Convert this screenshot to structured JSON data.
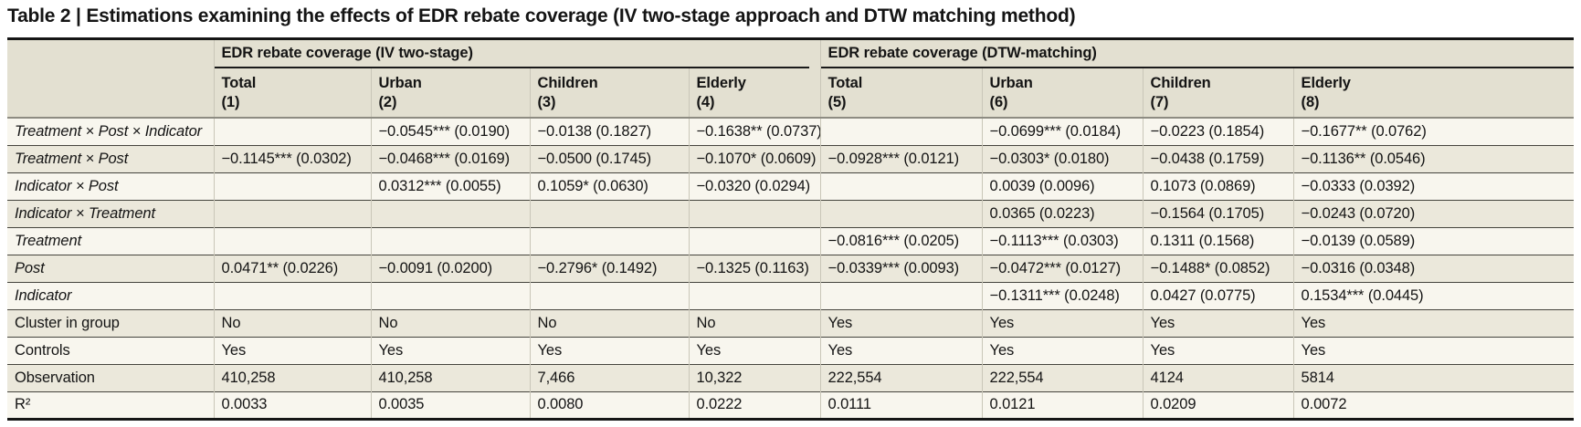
{
  "title": "Table 2 | Estimations examining the effects of EDR rebate coverage (IV two-stage approach and DTW matching method)",
  "table": {
    "groups": [
      {
        "label": "EDR rebate coverage (IV two-stage)"
      },
      {
        "label": "EDR rebate coverage (DTW-matching)"
      }
    ],
    "columns": [
      {
        "name": "Total",
        "number": "(1)"
      },
      {
        "name": "Urban",
        "number": "(2)"
      },
      {
        "name": "Children",
        "number": "(3)"
      },
      {
        "name": "Elderly",
        "number": "(4)"
      },
      {
        "name": "Total",
        "number": "(5)"
      },
      {
        "name": "Urban",
        "number": "(6)"
      },
      {
        "name": "Children",
        "number": "(7)"
      },
      {
        "name": "Elderly",
        "number": "(8)"
      }
    ],
    "rows": [
      {
        "label": "Treatment × Post × Indicator",
        "italic": true,
        "values": [
          "",
          "−0.0545*** (0.0190)",
          "−0.0138 (0.1827)",
          "−0.1638** (0.0737)",
          "",
          "−0.0699*** (0.0184)",
          "−0.0223 (0.1854)",
          "−0.1677** (0.0762)"
        ]
      },
      {
        "label": "Treatment × Post",
        "italic": true,
        "values": [
          "−0.1145*** (0.0302)",
          "−0.0468*** (0.0169)",
          "−0.0500 (0.1745)",
          "−0.1070* (0.0609)",
          "−0.0928*** (0.0121)",
          "−0.0303* (0.0180)",
          "−0.0438 (0.1759)",
          "−0.1136** (0.0546)"
        ]
      },
      {
        "label": "Indicator × Post",
        "italic": true,
        "values": [
          "",
          "0.0312*** (0.0055)",
          "0.1059* (0.0630)",
          "−0.0320 (0.0294)",
          "",
          "0.0039 (0.0096)",
          "0.1073 (0.0869)",
          "−0.0333 (0.0392)"
        ]
      },
      {
        "label": "Indicator × Treatment",
        "italic": true,
        "values": [
          "",
          "",
          "",
          "",
          "",
          "0.0365 (0.0223)",
          "−0.1564 (0.1705)",
          "−0.0243 (0.0720)"
        ]
      },
      {
        "label": "Treatment",
        "italic": true,
        "values": [
          "",
          "",
          "",
          "",
          "−0.0816*** (0.0205)",
          "−0.1113*** (0.0303)",
          "0.1311 (0.1568)",
          "−0.0139 (0.0589)"
        ]
      },
      {
        "label": "Post",
        "italic": true,
        "values": [
          "0.0471** (0.0226)",
          "−0.0091 (0.0200)",
          "−0.2796* (0.1492)",
          "−0.1325 (0.1163)",
          "−0.0339*** (0.0093)",
          "−0.0472*** (0.0127)",
          "−0.1488* (0.0852)",
          "−0.0316 (0.0348)"
        ]
      },
      {
        "label": "Indicator",
        "italic": true,
        "values": [
          "",
          "",
          "",
          "",
          "",
          "−0.1311*** (0.0248)",
          "0.0427 (0.0775)",
          "0.1534*** (0.0445)"
        ]
      },
      {
        "label": "Cluster in group",
        "italic": false,
        "values": [
          "No",
          "No",
          "No",
          "No",
          "Yes",
          "Yes",
          "Yes",
          "Yes"
        ]
      },
      {
        "label": "Controls",
        "italic": false,
        "values": [
          "Yes",
          "Yes",
          "Yes",
          "Yes",
          "Yes",
          "Yes",
          "Yes",
          "Yes"
        ]
      },
      {
        "label": "Observation",
        "italic": false,
        "values": [
          "410,258",
          "410,258",
          "7,466",
          "10,322",
          "222,554",
          "222,554",
          "4124",
          "5814"
        ]
      },
      {
        "label": "R²",
        "italic": false,
        "values": [
          "0.0033",
          "0.0035",
          "0.0080",
          "0.0222",
          "0.0111",
          "0.0121",
          "0.0209",
          "0.0072"
        ]
      }
    ]
  }
}
